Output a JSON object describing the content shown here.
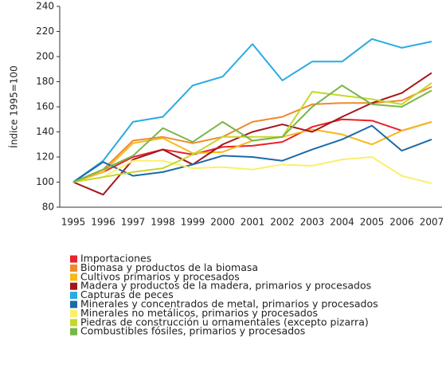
{
  "chart_data": {
    "type": "line",
    "y_label": "Índice 1995=100",
    "categories": [
      "1995",
      "1996",
      "1997",
      "1998",
      "1999",
      "2000",
      "2001",
      "2002",
      "2003",
      "2004",
      "2005",
      "2006",
      "2007"
    ],
    "ylim": [
      80,
      240
    ],
    "yticks": [
      80,
      100,
      120,
      140,
      160,
      180,
      200,
      220,
      240
    ],
    "series": [
      {
        "name": "Importaciones",
        "color": "#e8232a",
        "values": [
          100,
          108,
          120,
          126,
          122,
          128,
          129,
          132,
          144,
          150,
          149,
          141,
          148
        ]
      },
      {
        "name": "Biomasa y productos de la biomasa",
        "color": "#f0892b",
        "values": [
          100,
          110,
          133,
          136,
          131,
          136,
          148,
          152,
          162,
          163,
          163,
          165,
          176
        ]
      },
      {
        "name": "Cultivos primarios y procesados",
        "color": "#f7b91a",
        "values": [
          100,
          108,
          131,
          135,
          123,
          124,
          133,
          136,
          142,
          138,
          130,
          141,
          148
        ]
      },
      {
        "name": "Madera y productos de la madera, primarios y procesados",
        "color": "#a3161c",
        "values": [
          100,
          90,
          118,
          126,
          114,
          130,
          140,
          146,
          140,
          152,
          163,
          171,
          187
        ]
      },
      {
        "name": "Capturas de peces",
        "color": "#29abe2",
        "values": [
          100,
          117,
          148,
          152,
          177,
          184,
          210,
          181,
          196,
          196,
          214,
          207,
          212
        ]
      },
      {
        "name": "Minerales y concentrados de metal, primarios y procesados",
        "color": "#1c6aa8",
        "values": [
          100,
          116,
          105,
          108,
          114,
          121,
          120,
          117,
          126,
          134,
          145,
          125,
          134
        ]
      },
      {
        "name": "Minerales no metálicos, primarios y procesados",
        "color": "#f9f06b",
        "values": [
          100,
          104,
          117,
          117,
          111,
          112,
          110,
          114,
          113,
          118,
          120,
          105,
          99
        ]
      },
      {
        "name": "Piedras de construcción u ornamentales (excepto pizarra)",
        "color": "#c4d82e",
        "values": [
          100,
          104,
          108,
          111,
          122,
          136,
          136,
          136,
          172,
          169,
          166,
          162,
          179
        ]
      },
      {
        "name": "Combustibles fósiles, primarios y procesados",
        "color": "#7ab648",
        "values": [
          100,
          110,
          121,
          143,
          132,
          148,
          133,
          136,
          160,
          177,
          162,
          160,
          173
        ]
      }
    ]
  }
}
